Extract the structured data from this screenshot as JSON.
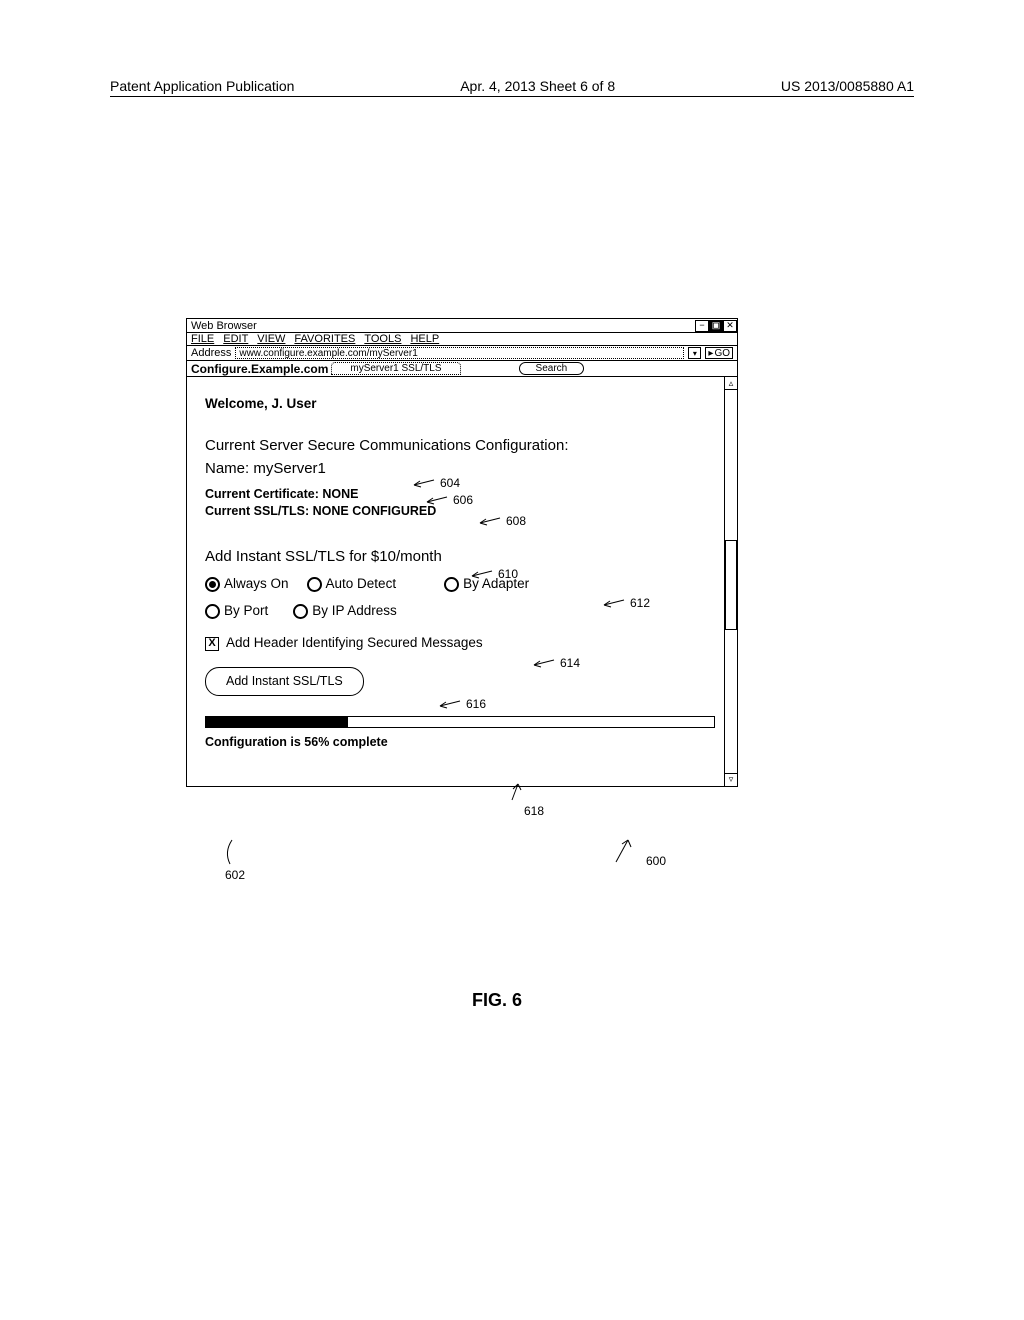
{
  "page_header": {
    "left": "Patent Application Publication",
    "center": "Apr. 4, 2013  Sheet 6 of 8",
    "right": "US 2013/0085880 A1"
  },
  "browser": {
    "title": "Web Browser",
    "window_controls": {
      "min": "−",
      "max": "▣",
      "close": "✕"
    },
    "menu": {
      "file": "FILE",
      "edit": "EDIT",
      "view": "VIEW",
      "favorites": "FAVORITES",
      "tools": "TOOLS",
      "help": "HELP"
    },
    "address_label": "Address",
    "address_value": "www.configure.example.com/myServer1",
    "go_label": "GO",
    "site_label": "Configure.Example.com",
    "tab_label": "myServer1 SSL/TLS",
    "search_label": "Search"
  },
  "content": {
    "welcome": "Welcome, J. User",
    "config_heading": "Current Server Secure Communications Configuration:",
    "name_label": "Name:  ",
    "name_value": "myServer1",
    "cert_line": "Current Certificate:  NONE",
    "ssl_line": "Current SSL/TLS:  NONE CONFIGURED",
    "add_heading": "Add Instant SSL/TLS for $10/month",
    "radios": {
      "always_on": "Always On",
      "auto_detect": "Auto Detect",
      "by_adapter": "By Adapter",
      "by_port": "By Port",
      "by_ip": "By IP Address"
    },
    "checkbox_label": "Add Header Identifying Secured Messages",
    "checkbox_checked": "X",
    "button_label": "Add Instant SSL/TLS",
    "progress_pct": 56,
    "progress_text": "Configuration is 56% complete"
  },
  "callouts": {
    "c604": "604",
    "c606": "606",
    "c608": "608",
    "c610": "610",
    "c612": "612",
    "c614": "614",
    "c616": "616",
    "c618": "618",
    "c600": "600",
    "c602": "602"
  },
  "figure_label": "FIG. 6",
  "style": {
    "progress_width_pct": 28
  }
}
